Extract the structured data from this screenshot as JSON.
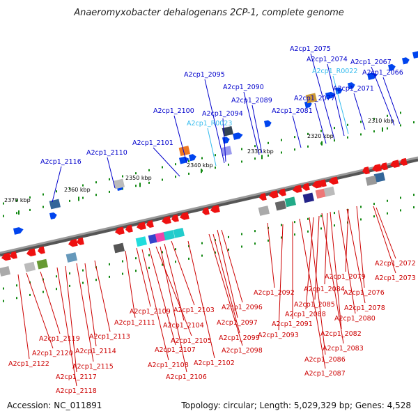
{
  "title": "Anaeromyxobacter dehalogenans 2CP-1, complete genome",
  "accession": "Accession: NC_011891",
  "summary": "Topology: circular; Length: 5,029,329 bp; Genes: 4,528",
  "colors": {
    "top_label": "#0000cc",
    "rna_label": "#33bbee",
    "bottom_label": "#cc0000",
    "forward_gene": "#0044ee",
    "reverse_gene": "#ee1111",
    "backbone": "#888888",
    "tick": "#118811"
  },
  "scale_labels": [
    {
      "text": "2370 kbp",
      "pos": 0.0
    },
    {
      "text": "2360 kbp",
      "pos": 0.167
    },
    {
      "text": "2350 kbp",
      "pos": 0.333
    },
    {
      "text": "2340 kbp",
      "pos": 0.5
    },
    {
      "text": "2330 kbp",
      "pos": 0.667
    },
    {
      "text": "2320 kbp",
      "pos": 0.833
    },
    {
      "text": "2310 kbp",
      "pos": 0.985
    }
  ],
  "top_genes": [
    {
      "name": "A2cp1_2116",
      "kind": "cds"
    },
    {
      "name": "A2cp1_2110",
      "kind": "cds"
    },
    {
      "name": "A2cp1_2101",
      "kind": "cds"
    },
    {
      "name": "A2cp1_2100",
      "kind": "cds"
    },
    {
      "name": "A2cp1_R0023",
      "kind": "rna"
    },
    {
      "name": "A2cp1_2094",
      "kind": "cds"
    },
    {
      "name": "A2cp1_2095",
      "kind": "cds"
    },
    {
      "name": "A2cp1_2089",
      "kind": "cds"
    },
    {
      "name": "A2cp1_2090",
      "kind": "cds"
    },
    {
      "name": "A2cp1_2081",
      "kind": "cds"
    },
    {
      "name": "A2cp1_2077",
      "kind": "cds"
    },
    {
      "name": "A2cp1_R0022",
      "kind": "rna"
    },
    {
      "name": "A2cp1_2075",
      "kind": "cds"
    },
    {
      "name": "A2cp1_2074",
      "kind": "cds"
    },
    {
      "name": "A2cp1_2071",
      "kind": "cds"
    },
    {
      "name": "A2cp1_2067",
      "kind": "cds"
    },
    {
      "name": "A2cp1_2066",
      "kind": "cds"
    }
  ],
  "bottom_genes": [
    "A2cp1_2072",
    "A2cp1_2073",
    "A2cp1_2076",
    "A2cp1_2079",
    "A2cp1_2078",
    "A2cp1_2084",
    "A2cp1_2080",
    "A2cp1_2085",
    "A2cp1_2082",
    "A2cp1_2088",
    "A2cp1_2083",
    "A2cp1_2092",
    "A2cp1_2086",
    "A2cp1_2091",
    "A2cp1_2087",
    "A2cp1_2093",
    "A2cp1_2096",
    "A2cp1_2097",
    "A2cp1_2099",
    "A2cp1_2098",
    "A2cp1_2102",
    "A2cp1_2103",
    "A2cp1_2104",
    "A2cp1_2105",
    "A2cp1_2106",
    "A2cp1_2107",
    "A2cp1_2108",
    "A2cp1_2109",
    "A2cp1_2111",
    "A2cp1_2113",
    "A2cp1_2114",
    "A2cp1_2115",
    "A2cp1_2117",
    "A2cp1_2118",
    "A2cp1_2119",
    "A2cp1_2120",
    "A2cp1_2122"
  ]
}
